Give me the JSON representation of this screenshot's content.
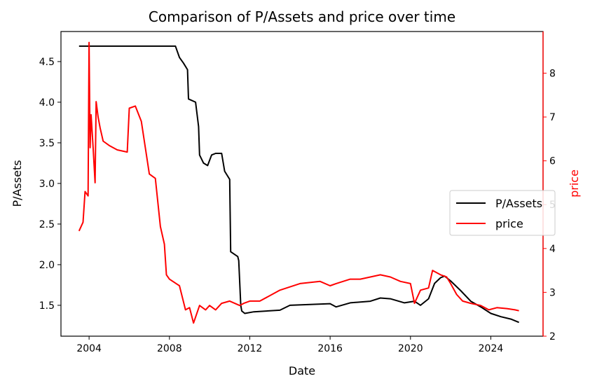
{
  "chart_data": {
    "type": "line",
    "title": "Comparison of P/Assets and price over time",
    "xlabel": "Date",
    "ylabel_left": "P/Assets",
    "ylabel_right": "price",
    "x_ticks": [
      "2004",
      "2008",
      "2012",
      "2016",
      "2020",
      "2024"
    ],
    "x_range": [
      2002.6,
      2026.6
    ],
    "y_left_ticks": [
      "1.5",
      "2.0",
      "2.5",
      "3.0",
      "3.5",
      "4.0",
      "4.5"
    ],
    "y_left_range": [
      1.12,
      4.87
    ],
    "y_right_ticks": [
      "2",
      "3",
      "4",
      "5",
      "6",
      "7",
      "8"
    ],
    "y_right_range": [
      2.0,
      8.95
    ],
    "grid": false,
    "legend_position": "center-right",
    "series": [
      {
        "name": "P/Assets",
        "axis": "left",
        "color": "#000000",
        "x": [
          2003.5,
          2004.5,
          2006.0,
          2007.5,
          2008.3,
          2008.5,
          2008.7,
          2008.9,
          2008.95,
          2009.3,
          2009.45,
          2009.5,
          2009.7,
          2009.9,
          2010.1,
          2010.3,
          2010.6,
          2010.75,
          2011.0,
          2011.05,
          2011.4,
          2011.45,
          2011.55,
          2011.6,
          2011.75,
          2012.2,
          2013.5,
          2014.0,
          2015.0,
          2016.0,
          2016.3,
          2017.0,
          2018.0,
          2018.5,
          2019.0,
          2019.7,
          2020.2,
          2020.5,
          2020.9,
          2021.2,
          2021.5,
          2021.7,
          2022.0,
          2022.5,
          2023.0,
          2023.5,
          2024.0,
          2024.5,
          2025.0,
          2025.4
        ],
        "y": [
          4.69,
          4.69,
          4.69,
          4.69,
          4.69,
          4.55,
          4.48,
          4.4,
          4.04,
          4.0,
          3.7,
          3.35,
          3.25,
          3.22,
          3.35,
          3.37,
          3.37,
          3.15,
          3.05,
          2.16,
          2.1,
          2.05,
          1.5,
          1.43,
          1.4,
          1.42,
          1.44,
          1.5,
          1.51,
          1.52,
          1.48,
          1.53,
          1.55,
          1.59,
          1.58,
          1.53,
          1.55,
          1.5,
          1.58,
          1.77,
          1.84,
          1.86,
          1.8,
          1.68,
          1.55,
          1.48,
          1.4,
          1.36,
          1.33,
          1.29
        ]
      },
      {
        "name": "price",
        "axis": "right",
        "color": "#ff0000",
        "x": [
          2003.5,
          2003.7,
          2003.8,
          2003.95,
          2004.0,
          2004.05,
          2004.1,
          2004.2,
          2004.3,
          2004.35,
          2004.45,
          2004.55,
          2004.7,
          2005.0,
          2005.4,
          2005.9,
          2006.0,
          2006.3,
          2006.6,
          2006.8,
          2007.0,
          2007.3,
          2007.55,
          2007.75,
          2007.85,
          2008.0,
          2008.5,
          2008.8,
          2009.0,
          2009.2,
          2009.5,
          2009.8,
          2010.0,
          2010.3,
          2010.6,
          2011.0,
          2011.5,
          2011.7,
          2012.0,
          2012.5,
          2013.5,
          2014.5,
          2015.5,
          2016.0,
          2016.3,
          2017.0,
          2017.5,
          2018.0,
          2018.5,
          2019.0,
          2019.5,
          2020.0,
          2020.2,
          2020.5,
          2020.9,
          2021.1,
          2021.5,
          2021.8,
          2022.0,
          2022.3,
          2022.6,
          2023.0,
          2023.5,
          2023.9,
          2024.3,
          2024.8,
          2025.2,
          2025.4
        ],
        "y": [
          4.4,
          4.6,
          5.3,
          5.2,
          8.7,
          6.3,
          7.05,
          6.3,
          5.5,
          7.35,
          7.0,
          6.75,
          6.45,
          6.35,
          6.25,
          6.2,
          7.2,
          7.25,
          6.9,
          6.3,
          5.7,
          5.6,
          4.5,
          4.1,
          3.4,
          3.3,
          3.15,
          2.6,
          2.65,
          2.3,
          2.7,
          2.6,
          2.7,
          2.6,
          2.75,
          2.8,
          2.7,
          2.75,
          2.8,
          2.8,
          3.05,
          3.2,
          3.25,
          3.15,
          3.2,
          3.3,
          3.3,
          3.35,
          3.4,
          3.35,
          3.25,
          3.2,
          2.75,
          3.05,
          3.1,
          3.5,
          3.4,
          3.35,
          3.2,
          2.95,
          2.8,
          2.75,
          2.7,
          2.6,
          2.65,
          2.63,
          2.6,
          2.58
        ]
      }
    ]
  }
}
